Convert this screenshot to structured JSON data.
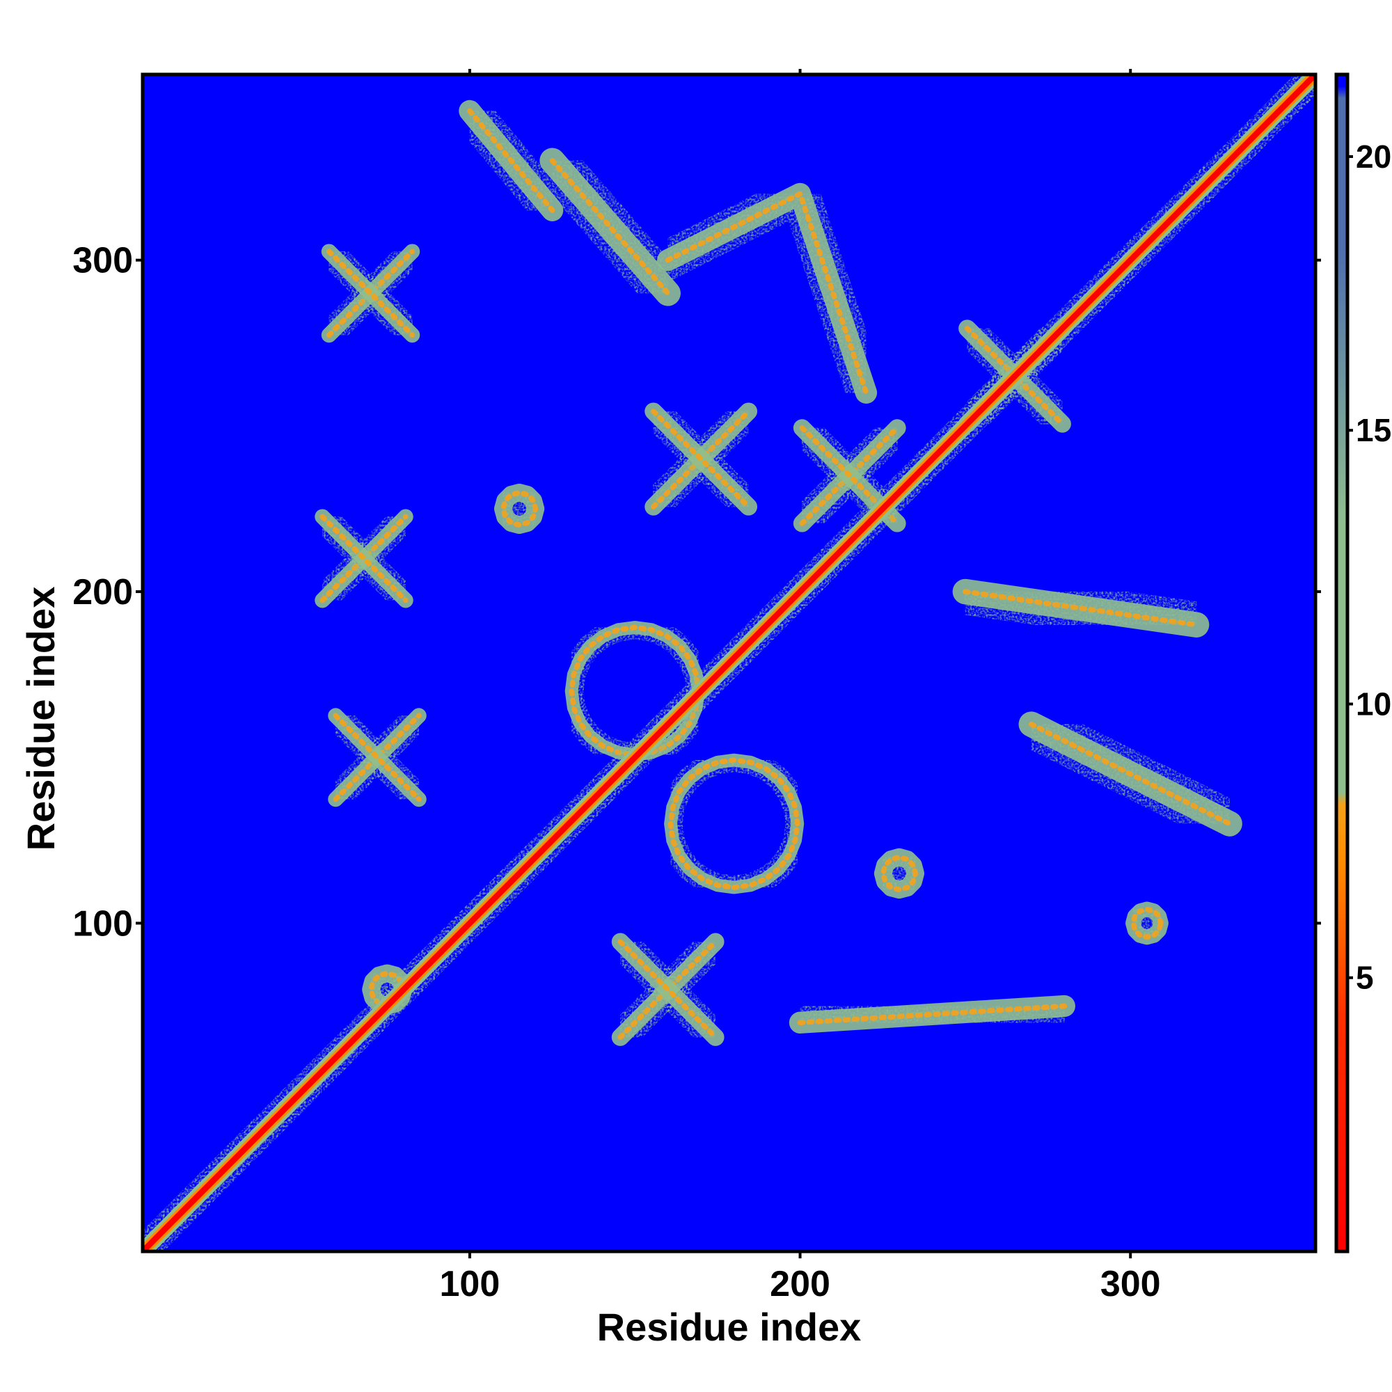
{
  "chart_data": {
    "type": "heatmap",
    "title": "",
    "xlabel": "Residue index",
    "ylabel": "Residue index",
    "xlim": [
      1,
      356
    ],
    "ylim": [
      1,
      356
    ],
    "x_ticks": [
      100,
      200,
      300
    ],
    "y_ticks": [
      100,
      200,
      300
    ],
    "x_tick_labels": [
      "100",
      "200",
      "300"
    ],
    "y_tick_labels": [
      "100",
      "200",
      "300"
    ],
    "colorbar": {
      "range": [
        0,
        21.5
      ],
      "ticks": [
        5,
        10,
        15,
        20
      ],
      "tick_labels": [
        "5",
        "10",
        "15",
        "20"
      ],
      "colors": {
        "close": "#ff0000",
        "mid": "#ff8c00",
        "near": "#f5a21a",
        "contact": "#8fbf8f",
        "far": "#0000ff",
        "top": "#4f6fae"
      }
    },
    "diagonal": "distance 0 along x = y, red",
    "contact_features": [
      {
        "shape": "cross",
        "x": 70,
        "y": 290,
        "width": 14
      },
      {
        "shape": "cross",
        "x": 68,
        "y": 210,
        "width": 14
      },
      {
        "shape": "cross",
        "x": 72,
        "y": 150,
        "width": 14
      },
      {
        "shape": "blob",
        "x": 75,
        "y": 80,
        "width": 14
      },
      {
        "shape": "band",
        "x": [
          100,
          125
        ],
        "y": [
          345,
          315
        ],
        "width": 12
      },
      {
        "shape": "band",
        "x": [
          125,
          160
        ],
        "y": [
          330,
          290
        ],
        "width": 14
      },
      {
        "shape": "arc",
        "x": [
          160,
          200,
          220
        ],
        "y": [
          300,
          320,
          260
        ],
        "width": 12
      },
      {
        "shape": "blob",
        "x": 115,
        "y": 225,
        "width": 14
      },
      {
        "shape": "cross",
        "x": 170,
        "y": 240,
        "width": 16
      },
      {
        "shape": "ring",
        "x": 150,
        "y": 170,
        "width": 16
      },
      {
        "shape": "ring",
        "x": 180,
        "y": 130,
        "width": 16
      },
      {
        "shape": "cross",
        "x": 160,
        "y": 80,
        "width": 16
      },
      {
        "shape": "band",
        "x": [
          200,
          280
        ],
        "y": [
          70,
          75
        ],
        "width": 12
      },
      {
        "shape": "blob",
        "x": 230,
        "y": 115,
        "width": 14
      },
      {
        "shape": "band",
        "x": [
          250,
          320
        ],
        "y": [
          200,
          190
        ],
        "width": 14
      },
      {
        "shape": "band",
        "x": [
          270,
          330
        ],
        "y": [
          160,
          130
        ],
        "width": 14
      },
      {
        "shape": "blob",
        "x": 305,
        "y": 100,
        "width": 12
      },
      {
        "shape": "cross",
        "x": 265,
        "y": 265,
        "width": 16
      },
      {
        "shape": "cross",
        "x": 215,
        "y": 235,
        "width": 16
      }
    ]
  }
}
